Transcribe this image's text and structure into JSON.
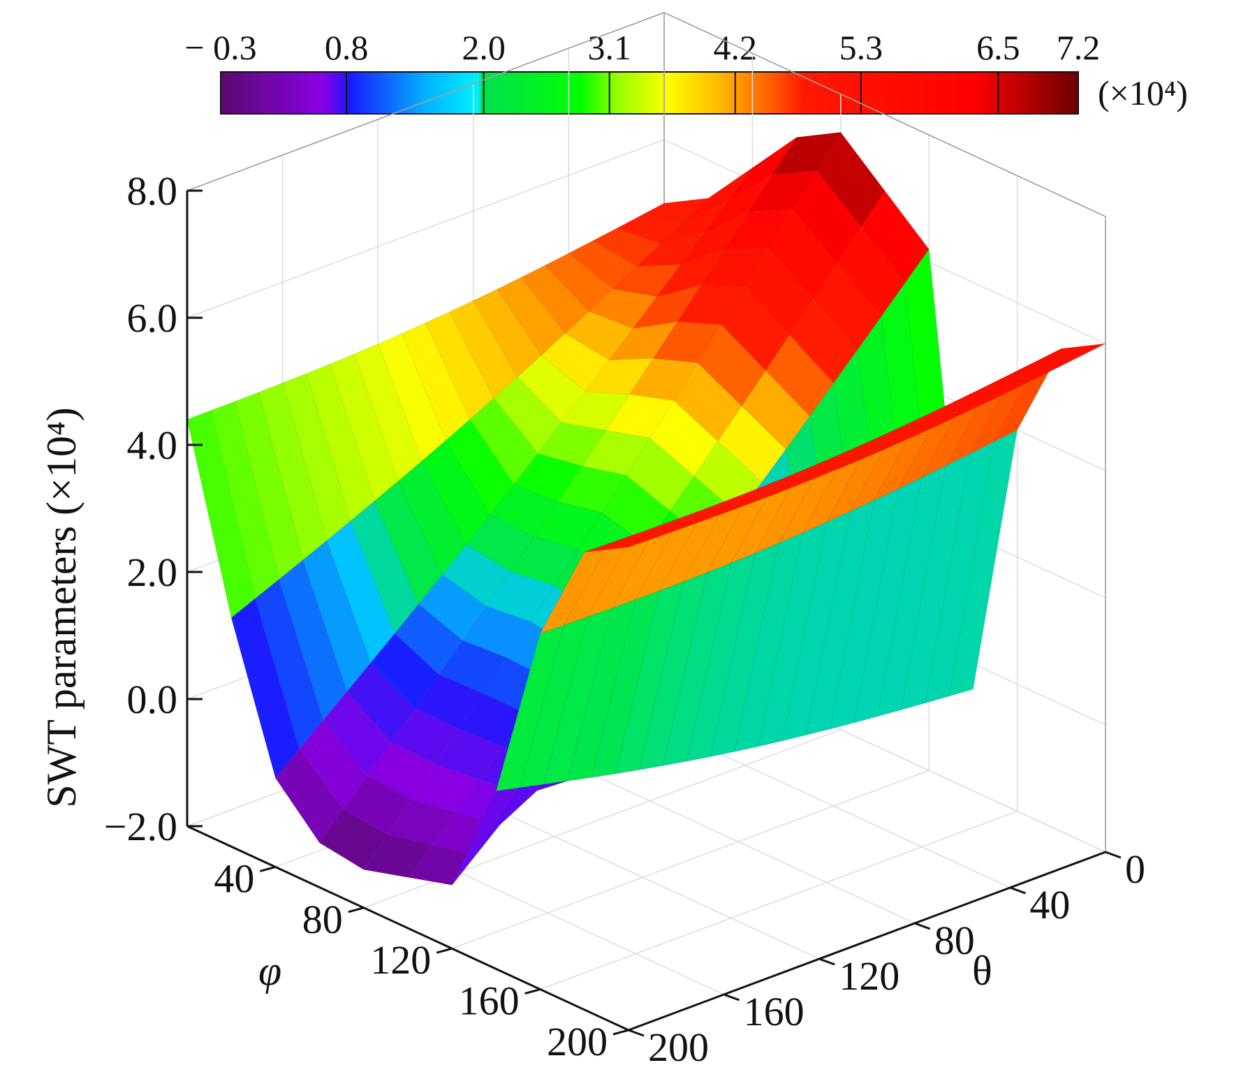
{
  "chart_data": {
    "type": "surface3d",
    "title": "",
    "zlabel": "SWT parameters (×10⁴)",
    "xlabel": "φ",
    "ylabel": "θ",
    "x_axis": {
      "name": "φ",
      "range": [
        0,
        200
      ],
      "ticks": [
        "40",
        "80",
        "120",
        "160",
        "200"
      ]
    },
    "y_axis": {
      "name": "θ",
      "range": [
        0,
        200
      ],
      "ticks": [
        "0",
        "40",
        "80",
        "120",
        "160",
        "200"
      ]
    },
    "z_axis": {
      "range": [
        -2.0,
        8.0
      ],
      "ticks": [
        "−2.0",
        "0.0",
        "2.0",
        "4.0",
        "6.0",
        "8.0"
      ]
    },
    "colorbar": {
      "ticks": [
        "− 0.3",
        "0.8",
        "2.0",
        "3.1",
        "4.2",
        "5.3",
        "6.5",
        "7.2"
      ],
      "tick_values": [
        -0.3,
        0.8,
        2.0,
        3.1,
        4.2,
        5.3,
        6.5,
        7.2
      ],
      "unit_label": "(×10⁴)",
      "colormap": [
        "#5b0a6e",
        "#8a00e6",
        "#1020ff",
        "#00c8ff",
        "#00ff20",
        "#ffff00",
        "#ff9800",
        "#ff1e00",
        "#ff0000",
        "#7a0000"
      ]
    },
    "grid": true,
    "surface": {
      "description_of_shape": "two ridges along theta separated by a valley near phi≈130 then rising",
      "phi": [
        0,
        20,
        40,
        60,
        80,
        100,
        120,
        140,
        160,
        180,
        200
      ],
      "theta": [
        0,
        20,
        40,
        60,
        80,
        100,
        120,
        140,
        160,
        180,
        200
      ],
      "z_by_phi_for_theta0": [
        5.0,
        5.4,
        6.2,
        7.0,
        7.4,
        6.8,
        6.2,
        -0.4,
        4.0,
        5.6,
        6.0
      ],
      "z_by_phi_for_theta200": [
        4.4,
        1.6,
        -0.6,
        -1.3,
        -1.4,
        -1.2,
        -1.0,
        0.8,
        3.6,
        5.2,
        5.6
      ]
    }
  }
}
